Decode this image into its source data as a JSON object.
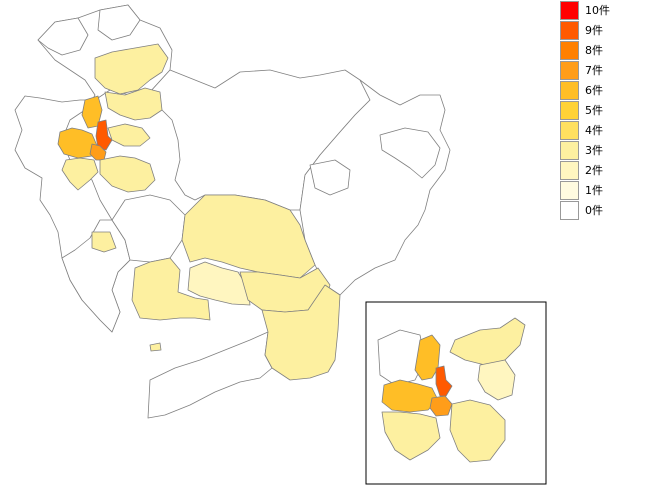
{
  "legend": {
    "items": [
      {
        "label": "10件",
        "color": "#ff0000"
      },
      {
        "label": "9件",
        "color": "#ff5a00"
      },
      {
        "label": "8件",
        "color": "#ff8000"
      },
      {
        "label": "7件",
        "color": "#ff9d19"
      },
      {
        "label": "6件",
        "color": "#ffbe26"
      },
      {
        "label": "5件",
        "color": "#ffd236"
      },
      {
        "label": "4件",
        "color": "#ffe060"
      },
      {
        "label": "3件",
        "color": "#fdf0a0"
      },
      {
        "label": "2件",
        "color": "#fff6c0"
      },
      {
        "label": "1件",
        "color": "#fffbe0"
      },
      {
        "label": "0件",
        "color": "#ffffff"
      }
    ]
  },
  "regions": [
    {
      "name": "north-west-1",
      "count": 0
    },
    {
      "name": "north-west-2",
      "count": 0
    },
    {
      "name": "north-west-3",
      "count": 0
    },
    {
      "name": "north-west-4",
      "count": 0
    },
    {
      "name": "north-upper-yellow",
      "count": 3
    },
    {
      "name": "north-mid-yellow",
      "count": 3
    },
    {
      "name": "north-small-yellow",
      "count": 6
    },
    {
      "name": "north-orange",
      "count": 9
    },
    {
      "name": "west-big-orange",
      "count": 6
    },
    {
      "name": "west-center-orange",
      "count": 7
    },
    {
      "name": "west-lower-yellow",
      "count": 3
    },
    {
      "name": "west-lower-yellow-2",
      "count": 3
    },
    {
      "name": "west-small-yellow",
      "count": 3
    },
    {
      "name": "central-west-1",
      "count": 0
    },
    {
      "name": "central-west-2",
      "count": 0
    },
    {
      "name": "central-big-yellow",
      "count": 3
    },
    {
      "name": "central-left-yellow",
      "count": 3
    },
    {
      "name": "central-mid-yellow",
      "count": 2
    },
    {
      "name": "central-right-yellow",
      "count": 3
    },
    {
      "name": "central-east-yellow",
      "count": 3
    },
    {
      "name": "south-east-yellow",
      "count": 3
    },
    {
      "name": "east-mountains-1",
      "count": 0
    },
    {
      "name": "east-mountains-2",
      "count": 0
    },
    {
      "name": "east-mountains-3",
      "count": 0
    },
    {
      "name": "south-peninsula",
      "count": 0
    },
    {
      "name": "south-island",
      "count": 3
    },
    {
      "name": "inset-orange",
      "count": 9
    },
    {
      "name": "inset-big-orange",
      "count": 6
    },
    {
      "name": "inset-center-orange",
      "count": 7
    },
    {
      "name": "inset-north-yellow",
      "count": 6
    },
    {
      "name": "inset-ne-yellow",
      "count": 3
    },
    {
      "name": "inset-e-yellow",
      "count": 2
    },
    {
      "name": "inset-s-yellow",
      "count": 3
    },
    {
      "name": "inset-sw-yellow",
      "count": 3
    },
    {
      "name": "inset-w-white",
      "count": 0
    }
  ]
}
